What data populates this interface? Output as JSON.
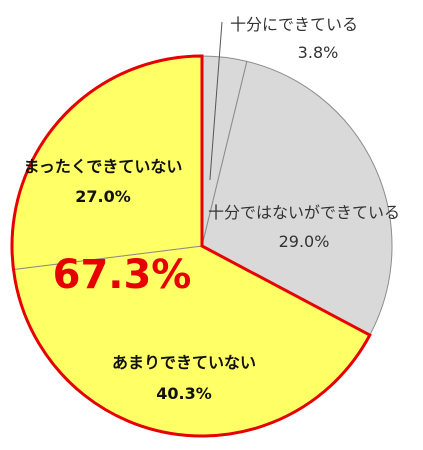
{
  "chart_data": {
    "type": "pie",
    "categories": [
      "十分にできている",
      "十分ではないができている",
      "あまりできていない",
      "まったくできていない"
    ],
    "values": [
      3.8,
      29.0,
      40.3,
      27.0
    ],
    "value_labels": [
      "3.8%",
      "29.0%",
      "40.3%",
      "27.0%"
    ],
    "colors": [
      "#d9d9d9",
      "#d9d9d9",
      "#ffff66",
      "#ffff66"
    ],
    "highlight_color": "#e60000",
    "annotation": "67.3%",
    "start_angle_deg": 0,
    "direction": "clockwise",
    "legend": "none",
    "title": ""
  }
}
